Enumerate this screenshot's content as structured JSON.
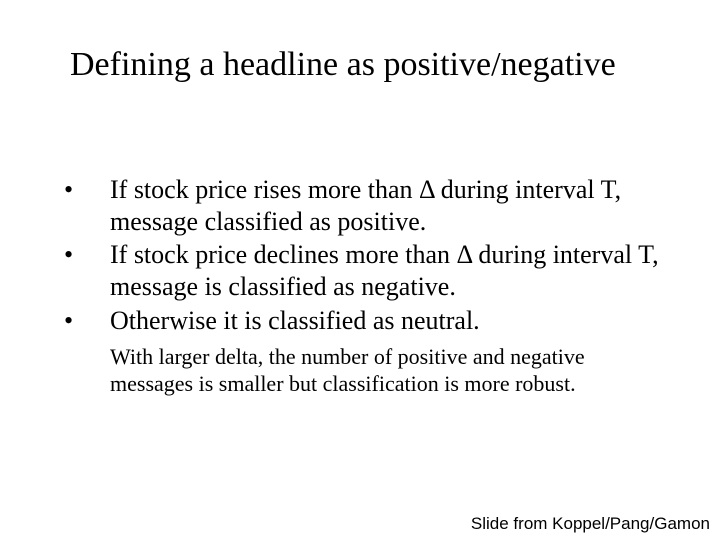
{
  "title": "Defining a headline as positive/negative",
  "bullets": [
    "If stock price rises more than Δ during interval T, message classified as positive.",
    "If stock price declines more than Δ during interval T, message is classified as negative.",
    "Otherwise it is classified as neutral."
  ],
  "note": "With larger delta, the number of positive and negative messages is smaller but classification is more robust.",
  "credit": "Slide from Koppel/Pang/Gamon",
  "colors": {
    "background": "#ffffff",
    "text": "#000000"
  },
  "fonts": {
    "title_family": "Times New Roman",
    "title_size_pt": 28,
    "body_family": "Times New Roman",
    "body_size_pt": 22,
    "note_size_pt": 18,
    "credit_family": "Arial",
    "credit_size_pt": 14
  }
}
